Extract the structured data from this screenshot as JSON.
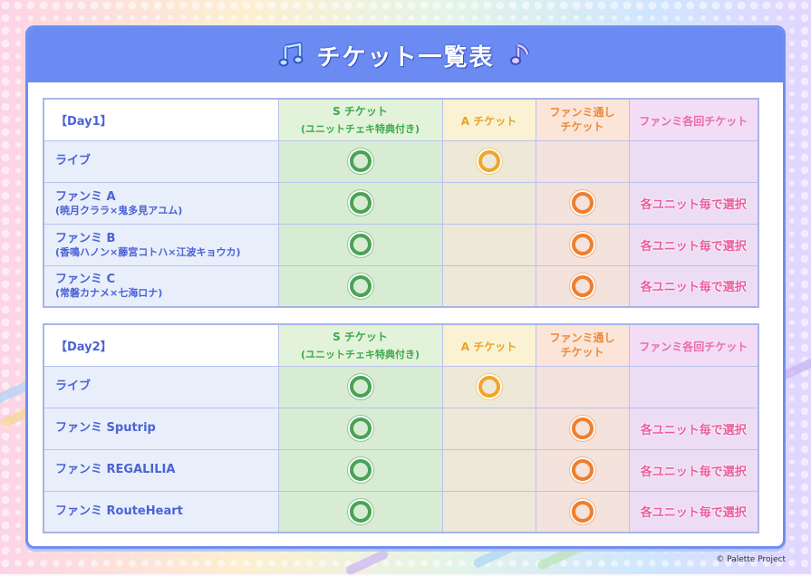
{
  "header": {
    "title": "チケット一覧表",
    "left_icon": "music-note-icon",
    "right_icon": "music-note-icon"
  },
  "colors": {
    "header_bg": "#6b8bf2",
    "label_text": "#4a63d6",
    "s_ticket": "#3fa84d",
    "a_ticket": "#e4a52a",
    "fanmeet_pass": "#ec8a3a",
    "fanmeet_each": "#ea6fa7"
  },
  "columns": {
    "s_ticket": "S チケット",
    "s_ticket_note": "(ユニットチェキ特典付き)",
    "a_ticket": "A チケット",
    "fanmeet_pass_1": "ファンミ通し",
    "fanmeet_pass_2": "チケット",
    "fanmeet_each": "ファンミ各回チケット"
  },
  "day1": {
    "label": "【Day1】",
    "rows": [
      {
        "label": "ライブ",
        "sub": ""
      },
      {
        "label": "ファンミ A",
        "sub": "(暁月クララ×鬼多見アユム)"
      },
      {
        "label": "ファンミ B",
        "sub": "(香鳴ハノン×藤宮コトハ×江波キョウカ)"
      },
      {
        "label": "ファンミ C",
        "sub": "(常磐カナメ×七海ロナ)"
      }
    ]
  },
  "day2": {
    "label": "【Day2】",
    "rows": [
      {
        "label": "ライブ"
      },
      {
        "label": "ファンミ Sputrip"
      },
      {
        "label": "ファンミ REGALILIA"
      },
      {
        "label": "ファンミ RouteHeart"
      }
    ]
  },
  "select_text": "各ユニット毎で選択",
  "copyright": "© Palette Project"
}
